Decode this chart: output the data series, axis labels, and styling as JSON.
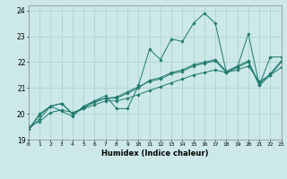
{
  "xlabel": "Humidex (Indice chaleur)",
  "xlim": [
    0,
    23
  ],
  "ylim": [
    19,
    24.2
  ],
  "yticks": [
    19,
    20,
    21,
    22,
    23,
    24
  ],
  "xticks": [
    0,
    1,
    2,
    3,
    4,
    5,
    6,
    7,
    8,
    9,
    10,
    11,
    12,
    13,
    14,
    15,
    16,
    17,
    18,
    19,
    20,
    21,
    22,
    23
  ],
  "bg_color": "#cce8e8",
  "grid_color": "#aacfcf",
  "line_color": "#1e7a6e",
  "series": [
    [
      19.4,
      19.8,
      20.3,
      20.1,
      19.9,
      20.3,
      20.5,
      20.7,
      20.2,
      20.2,
      21.1,
      22.5,
      22.1,
      22.9,
      22.8,
      23.5,
      23.9,
      23.5,
      21.6,
      21.8,
      23.1,
      21.1,
      22.2,
      22.2
    ],
    [
      19.4,
      20.0,
      20.3,
      20.4,
      20.0,
      20.2,
      20.5,
      20.6,
      20.6,
      20.8,
      21.0,
      21.3,
      21.4,
      21.6,
      21.7,
      21.9,
      22.0,
      22.1,
      21.65,
      21.85,
      22.05,
      21.15,
      21.55,
      22.05
    ],
    [
      19.4,
      19.95,
      20.3,
      20.4,
      20.0,
      20.25,
      20.45,
      20.6,
      20.65,
      20.85,
      21.05,
      21.25,
      21.35,
      21.55,
      21.65,
      21.85,
      21.95,
      22.05,
      21.6,
      21.8,
      22.0,
      21.1,
      21.5,
      22.0
    ],
    [
      19.5,
      19.7,
      20.05,
      20.15,
      20.05,
      20.2,
      20.35,
      20.5,
      20.5,
      20.6,
      20.75,
      20.9,
      21.05,
      21.2,
      21.35,
      21.5,
      21.6,
      21.7,
      21.6,
      21.7,
      21.85,
      21.25,
      21.5,
      21.8
    ]
  ]
}
